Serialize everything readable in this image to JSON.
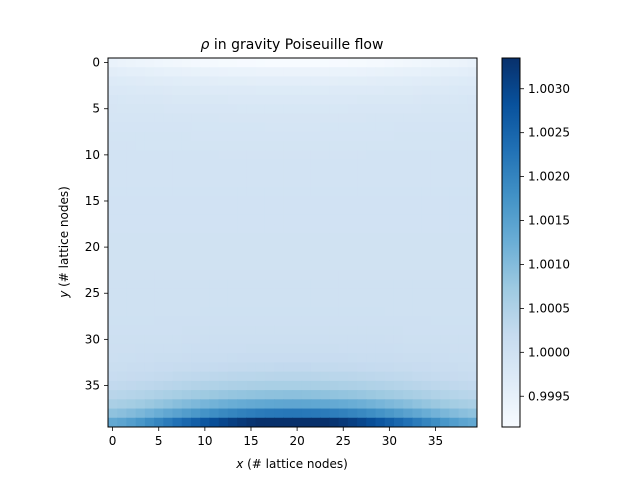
{
  "chart_data": {
    "type": "heatmap",
    "title_symbol": "ρ",
    "title_rest": " in gravity Poiseuille flow",
    "xlabel_var": "x",
    "xlabel_rest": " (# lattice nodes)",
    "ylabel_var": "y",
    "ylabel_rest": " (# lattice nodes)",
    "grid": false,
    "colormap": "Blues",
    "colormap_stops": [
      "#f7fbff",
      "#deebf7",
      "#c6dbef",
      "#9ecae1",
      "#6baed6",
      "#4292c6",
      "#2171b5",
      "#08519c",
      "#08306b"
    ],
    "nx": 40,
    "ny": 40,
    "x_ticks": [
      0,
      5,
      10,
      15,
      20,
      25,
      30,
      35
    ],
    "x_tick_labels": [
      "0",
      "5",
      "10",
      "15",
      "20",
      "25",
      "30",
      "35"
    ],
    "y_ticks": [
      0,
      5,
      10,
      15,
      20,
      25,
      30,
      35
    ],
    "y_tick_labels": [
      "0",
      "5",
      "10",
      "15",
      "20",
      "25",
      "30",
      "35"
    ],
    "y_axis_inverted": true,
    "colorbar_range": [
      0.99915,
      1.00335
    ],
    "colorbar_ticks": [
      0.9995,
      1.0,
      1.0005,
      1.001,
      1.0015,
      1.002,
      1.0025,
      1.003
    ],
    "colorbar_tick_labels": [
      "0.9995",
      "1.0000",
      "1.0005",
      "1.0010",
      "1.0015",
      "1.0020",
      "1.0025",
      "1.0030"
    ],
    "field_description": {
      "rho_min": 0.99915,
      "rho_max": 1.00335,
      "rho_interior_typical": 0.9999,
      "rho_bottom_center": 1.0033,
      "rho_bottom_edge": 1.0012,
      "rho_top_center": 0.99915
    }
  }
}
